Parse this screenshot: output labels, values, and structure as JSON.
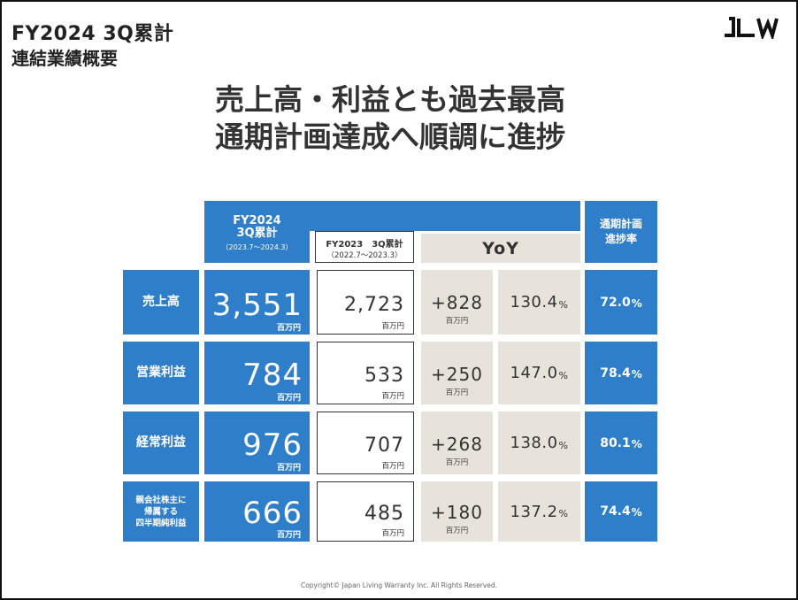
{
  "header": {
    "title": "FY2024 3Q累計",
    "subtitle": "連結業績概要",
    "logo_text": "JLW"
  },
  "headline": {
    "line1": "売上高・利益とも過去最高",
    "line2": "通期計画達成へ順調に進捗"
  },
  "table": {
    "col_fy2024": {
      "label": "FY2024\n3Q累計",
      "line1": "FY2024",
      "line2": "3Q累計",
      "range": "（2023.7～2024.3）"
    },
    "col_fy2023": {
      "label": "FY2023　3Q累計",
      "range": "（2022.7～2023.3）"
    },
    "col_yoy": "YoY",
    "col_progress": {
      "line1": "通期計画",
      "line2": "進捗率"
    },
    "unit": "百万円",
    "pct_sign": "%",
    "rows": [
      {
        "label": "売上高",
        "fy2024": "3,551",
        "fy2023": "2,723",
        "diff": "+828",
        "ratio": "130.4",
        "progress": "72.0"
      },
      {
        "label": "営業利益",
        "fy2024": "784",
        "fy2023": "533",
        "diff": "+250",
        "ratio": "147.0",
        "progress": "78.4"
      },
      {
        "label": "経常利益",
        "fy2024": "976",
        "fy2023": "707",
        "diff": "+268",
        "ratio": "138.0",
        "progress": "80.1"
      },
      {
        "label_line1": "親会社株主に",
        "label_line2": "帰属する",
        "label_line3": "四半期純利益",
        "fy2024": "666",
        "fy2023": "485",
        "diff": "+180",
        "ratio": "137.2",
        "progress": "74.4"
      }
    ]
  },
  "footer": "Copyright©  Japan Living  Warranty  Inc. All Rights  Reserved.",
  "colors": {
    "blue": "#2f7ec9",
    "beige": "#e8e3da"
  }
}
